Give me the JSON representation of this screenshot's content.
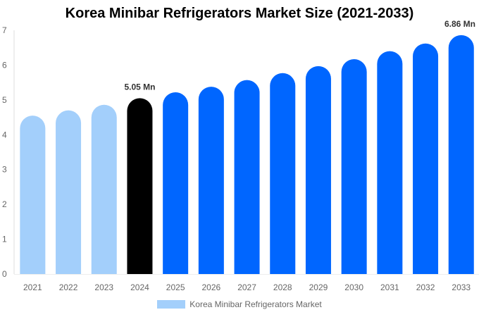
{
  "chart_data": {
    "type": "bar",
    "title": "Korea Minibar Refrigerators Market Size (2021-2033)",
    "categories": [
      "2021",
      "2022",
      "2023",
      "2024",
      "2025",
      "2026",
      "2027",
      "2028",
      "2029",
      "2030",
      "2031",
      "2032",
      "2033"
    ],
    "values": [
      4.55,
      4.7,
      4.86,
      5.05,
      5.22,
      5.38,
      5.57,
      5.77,
      5.97,
      6.17,
      6.4,
      6.62,
      6.86
    ],
    "data_labels": {
      "3": "5.05 Mn",
      "12": "6.86 Mn"
    },
    "ylim": [
      0,
      7
    ],
    "yticks": [
      0,
      1,
      2,
      3,
      4,
      5,
      6,
      7
    ],
    "xlabel": "",
    "ylabel": "",
    "grid": false,
    "legend": {
      "placement": "bottom",
      "entries": [
        "Korea Minibar Refrigerators Market"
      ]
    },
    "colors": {
      "historic": "#a3cffb",
      "current": "#000000",
      "forecast": "#0066ff"
    },
    "color_groups": [
      "historic",
      "historic",
      "historic",
      "current",
      "forecast",
      "forecast",
      "forecast",
      "forecast",
      "forecast",
      "forecast",
      "forecast",
      "forecast",
      "forecast"
    ]
  }
}
